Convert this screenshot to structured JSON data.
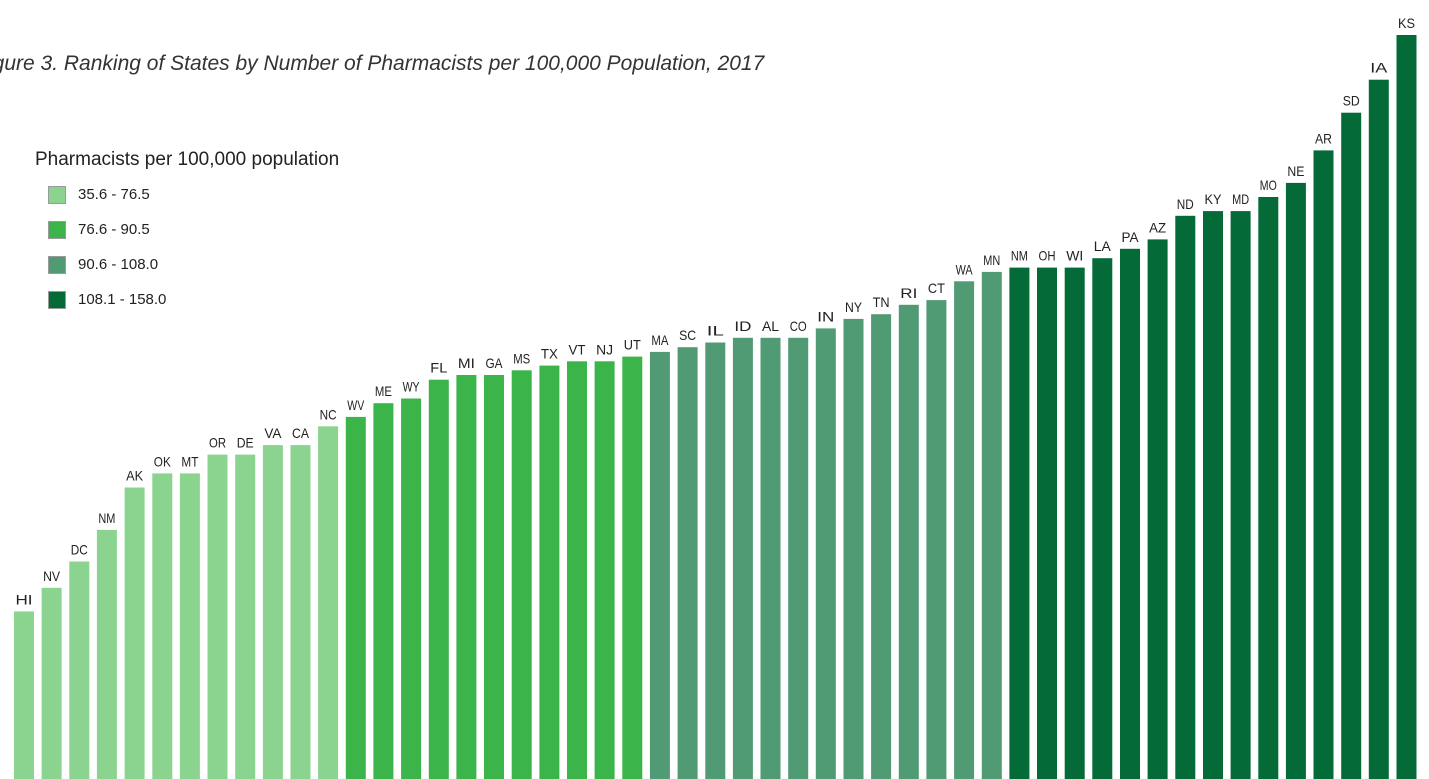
{
  "title": "igure 3. Ranking of States by Number of Pharmacists per 100,000 Population, 2017",
  "legend": {
    "title": "Pharmacists per 100,000 population",
    "items": [
      {
        "label": "35.6 - 76.5",
        "color": "#8bd48f"
      },
      {
        "label": "76.6 - 90.5",
        "color": "#3bb54a"
      },
      {
        "label": "90.6 - 108.0",
        "color": "#509a74"
      },
      {
        "label": "108.1 - 158.0",
        "color": "#036a38"
      }
    ]
  },
  "chart_data": {
    "type": "bar",
    "categories": [
      "HI",
      "NV",
      "DC",
      "NM",
      "AK",
      "OK",
      "MT",
      "OR",
      "DE",
      "VA",
      "CA",
      "NC",
      "WV",
      "ME",
      "WY",
      "FL",
      "MI",
      "GA",
      "MS",
      "TX",
      "VT",
      "NJ",
      "UT",
      "MA",
      "SC",
      "IL",
      "ID",
      "AL",
      "CO",
      "IN",
      "NY",
      "TN",
      "RI",
      "CT",
      "WA",
      "MN",
      "NM",
      "OH",
      "WI",
      "LA",
      "PA",
      "AZ",
      "ND",
      "KY",
      "MD",
      "MO",
      "NE",
      "AR",
      "SD",
      "IA",
      "KS"
    ],
    "values": [
      35.6,
      40.6,
      46.2,
      52.9,
      61.9,
      64.9,
      64.9,
      68.9,
      68.9,
      70.9,
      70.9,
      74.9,
      76.9,
      79.8,
      80.8,
      84.8,
      85.8,
      85.8,
      86.8,
      87.8,
      88.7,
      88.7,
      89.7,
      90.7,
      91.7,
      92.7,
      93.7,
      93.7,
      93.7,
      95.7,
      97.7,
      98.7,
      100.7,
      101.7,
      105.7,
      107.7,
      108.6,
      108.6,
      108.6,
      110.6,
      112.6,
      114.6,
      119.6,
      120.6,
      120.6,
      123.6,
      126.6,
      133.5,
      141.5,
      148.5,
      158.0
    ],
    "bin_breaks": [
      76.5,
      90.5,
      108.0
    ],
    "colors": [
      "#8bd48f",
      "#3bb54a",
      "#509a74",
      "#036a38"
    ],
    "ylim": [
      0,
      158
    ],
    "xlabel": "",
    "ylabel": ""
  }
}
